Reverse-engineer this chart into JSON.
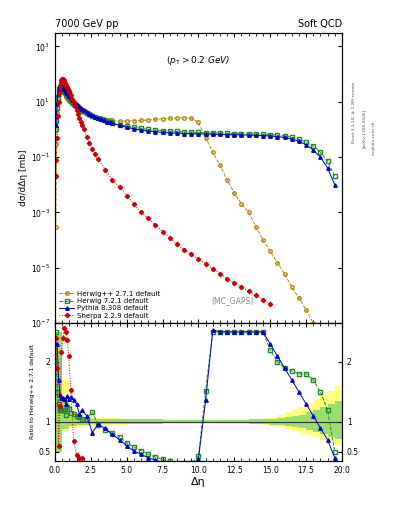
{
  "title_left": "7000 GeV pp",
  "title_right": "Soft QCD",
  "annotation": "(p_{T} > 0.2 GeV)",
  "mc_label": "(MC_GAPS)",
  "xlabel": "Δη",
  "ylabel_main": "dσ/dΔη [mb]",
  "ylabel_ratio": "Ratio to Herwig++ 2.7.1 default",
  "rivet_label": "Rivet 3.1.10; ≥ 3.2M events",
  "arxiv_label": "[arXiv:1306.3436]",
  "mcplots_label": "mcplots.cern.ch",
  "series": {
    "herwigpp": {
      "label": "Herwig++ 2.7.1 default",
      "color": "#b8860b",
      "linestyle": "--",
      "marker": "o",
      "markerfacecolor": "none",
      "x": [
        0.05,
        0.1,
        0.15,
        0.2,
        0.25,
        0.3,
        0.35,
        0.4,
        0.45,
        0.5,
        0.55,
        0.6,
        0.65,
        0.7,
        0.75,
        0.8,
        0.85,
        0.9,
        0.95,
        1.0,
        1.1,
        1.2,
        1.3,
        1.4,
        1.5,
        1.6,
        1.7,
        1.8,
        1.9,
        2.0,
        2.2,
        2.4,
        2.6,
        2.8,
        3.0,
        3.2,
        3.4,
        3.6,
        3.8,
        4.0,
        4.5,
        5.0,
        5.5,
        6.0,
        6.5,
        7.0,
        7.5,
        8.0,
        8.5,
        9.0,
        9.5,
        10.0,
        10.5,
        11.0,
        11.5,
        12.0,
        12.5,
        13.0,
        13.5,
        14.0,
        14.5,
        15.0,
        15.5,
        16.0,
        16.5,
        17.0,
        17.5,
        18.0,
        18.5,
        19.0,
        19.5
      ],
      "y": [
        0.0003,
        0.3,
        4.0,
        10.0,
        17.0,
        22.0,
        26.0,
        28.0,
        28.0,
        27.0,
        25.0,
        23.0,
        21.0,
        19.0,
        17.0,
        15.0,
        14.0,
        13.0,
        12.0,
        11.0,
        9.5,
        8.5,
        7.5,
        6.8,
        6.2,
        5.7,
        5.3,
        4.9,
        4.6,
        4.3,
        3.8,
        3.4,
        3.1,
        2.85,
        2.65,
        2.5,
        2.35,
        2.25,
        2.15,
        2.1,
        2.0,
        2.0,
        2.05,
        2.1,
        2.2,
        2.3,
        2.4,
        2.5,
        2.6,
        2.65,
        2.55,
        1.8,
        0.5,
        0.15,
        0.05,
        0.015,
        0.005,
        0.002,
        0.001,
        0.0003,
        0.0001,
        4e-05,
        1.5e-05,
        6e-06,
        2e-06,
        8e-07,
        3e-07,
        1e-07,
        4e-08,
        2e-08,
        8e-09
      ]
    },
    "herwig7": {
      "label": "Herwig 7.2.1 default",
      "color": "#228B22",
      "linestyle": "--",
      "marker": "s",
      "markerfacecolor": "none",
      "x": [
        0.05,
        0.1,
        0.15,
        0.2,
        0.25,
        0.3,
        0.35,
        0.4,
        0.45,
        0.5,
        0.55,
        0.6,
        0.65,
        0.7,
        0.75,
        0.8,
        0.85,
        0.9,
        0.95,
        1.0,
        1.1,
        1.2,
        1.3,
        1.4,
        1.5,
        1.6,
        1.7,
        1.8,
        1.9,
        2.0,
        2.2,
        2.4,
        2.6,
        2.8,
        3.0,
        3.2,
        3.4,
        3.6,
        3.8,
        4.0,
        4.5,
        5.0,
        5.5,
        6.0,
        6.5,
        7.0,
        7.5,
        8.0,
        8.5,
        9.0,
        9.5,
        10.0,
        10.5,
        11.0,
        11.5,
        12.0,
        12.5,
        13.0,
        13.5,
        14.0,
        14.5,
        15.0,
        15.5,
        16.0,
        16.5,
        17.0,
        17.5,
        18.0,
        18.5,
        19.0,
        19.5
      ],
      "y": [
        1.0,
        2.0,
        6.0,
        14.0,
        22.0,
        28.0,
        32.0,
        34.0,
        34.0,
        32.0,
        30.0,
        27.0,
        25.0,
        23.0,
        21.0,
        19.0,
        17.5,
        16.0,
        14.5,
        13.0,
        11.0,
        9.5,
        8.5,
        7.5,
        6.8,
        6.2,
        5.7,
        5.2,
        4.8,
        4.5,
        4.0,
        3.5,
        3.1,
        2.8,
        2.5,
        2.3,
        2.1,
        1.95,
        1.82,
        1.7,
        1.5,
        1.3,
        1.2,
        1.1,
        1.0,
        0.95,
        0.9,
        0.87,
        0.84,
        0.82,
        0.8,
        0.78,
        0.76,
        0.75,
        0.73,
        0.72,
        0.71,
        0.7,
        0.69,
        0.68,
        0.67,
        0.65,
        0.62,
        0.58,
        0.52,
        0.44,
        0.35,
        0.25,
        0.15,
        0.07,
        0.02
      ]
    },
    "pythia8": {
      "label": "Pythia 8.308 default",
      "color": "#0000cd",
      "linestyle": "-",
      "marker": "^",
      "markerfacecolor": "#0000cd",
      "x": [
        0.05,
        0.1,
        0.15,
        0.2,
        0.25,
        0.3,
        0.35,
        0.4,
        0.45,
        0.5,
        0.55,
        0.6,
        0.65,
        0.7,
        0.75,
        0.8,
        0.85,
        0.9,
        0.95,
        1.0,
        1.1,
        1.2,
        1.3,
        1.4,
        1.5,
        1.6,
        1.7,
        1.8,
        1.9,
        2.0,
        2.2,
        2.4,
        2.6,
        2.8,
        3.0,
        3.2,
        3.4,
        3.6,
        3.8,
        4.0,
        4.5,
        5.0,
        5.5,
        6.0,
        6.5,
        7.0,
        7.5,
        8.0,
        8.5,
        9.0,
        9.5,
        10.0,
        10.5,
        11.0,
        11.5,
        12.0,
        12.5,
        13.0,
        13.5,
        14.0,
        14.5,
        15.0,
        15.5,
        16.0,
        16.5,
        17.0,
        17.5,
        18.0,
        18.5,
        19.0,
        19.5
      ],
      "y": [
        1.5,
        3.0,
        9.0,
        19.0,
        29.0,
        36.0,
        40.0,
        41.0,
        40.0,
        38.0,
        35.0,
        32.0,
        29.0,
        26.0,
        24.0,
        22.0,
        20.0,
        18.5,
        17.0,
        15.5,
        13.5,
        11.5,
        10.0,
        9.0,
        8.0,
        7.2,
        6.5,
        6.0,
        5.5,
        5.0,
        4.2,
        3.7,
        3.2,
        2.85,
        2.55,
        2.3,
        2.1,
        1.9,
        1.8,
        1.65,
        1.4,
        1.2,
        1.05,
        0.95,
        0.87,
        0.82,
        0.78,
        0.75,
        0.73,
        0.71,
        0.7,
        0.69,
        0.68,
        0.67,
        0.66,
        0.65,
        0.64,
        0.63,
        0.62,
        0.61,
        0.6,
        0.58,
        0.55,
        0.51,
        0.45,
        0.37,
        0.28,
        0.18,
        0.1,
        0.04,
        0.01
      ]
    },
    "sherpa": {
      "label": "Sherpa 2.2.9 default",
      "color": "#cc0000",
      "linestyle": ":",
      "marker": "D",
      "markerfacecolor": "#cc0000",
      "x": [
        0.05,
        0.1,
        0.15,
        0.2,
        0.25,
        0.3,
        0.35,
        0.4,
        0.45,
        0.5,
        0.55,
        0.6,
        0.65,
        0.7,
        0.75,
        0.8,
        0.85,
        0.9,
        0.95,
        1.0,
        1.1,
        1.2,
        1.3,
        1.4,
        1.5,
        1.6,
        1.7,
        1.8,
        1.9,
        2.0,
        2.2,
        2.4,
        2.6,
        2.8,
        3.0,
        3.5,
        4.0,
        4.5,
        5.0,
        5.5,
        6.0,
        6.5,
        7.0,
        7.5,
        8.0,
        8.5,
        9.0,
        9.5,
        10.0,
        10.5,
        11.0,
        11.5,
        12.0,
        12.5,
        13.0,
        13.5,
        14.0,
        14.5,
        15.0
      ],
      "y": [
        0.02,
        0.08,
        0.5,
        3.0,
        10.0,
        20.0,
        35.0,
        50.0,
        60.0,
        65.0,
        65.0,
        60.0,
        54.0,
        48.0,
        42.0,
        37.0,
        33.0,
        29.0,
        25.0,
        22.0,
        17.0,
        13.0,
        9.5,
        7.0,
        5.0,
        3.6,
        2.6,
        1.9,
        1.4,
        1.0,
        0.55,
        0.32,
        0.2,
        0.13,
        0.085,
        0.035,
        0.015,
        0.008,
        0.004,
        0.002,
        0.001,
        0.0006,
        0.00035,
        0.0002,
        0.00012,
        7e-05,
        4.5e-05,
        3e-05,
        2e-05,
        1.4e-05,
        9e-06,
        6e-06,
        4e-06,
        2.8e-06,
        2e-06,
        1.4e-06,
        1e-06,
        7e-07,
        5e-07
      ]
    }
  },
  "ratio_herwig7": {
    "x": [
      0.05,
      0.15,
      0.25,
      0.35,
      0.45,
      0.55,
      0.65,
      0.75,
      0.85,
      0.95,
      1.1,
      1.3,
      1.5,
      1.7,
      1.9,
      2.2,
      2.6,
      3.0,
      3.5,
      4.0,
      4.5,
      5.0,
      5.5,
      6.0,
      6.5,
      7.0,
      7.5,
      8.0,
      8.5,
      9.0,
      9.5,
      10.0,
      10.5,
      11.0,
      11.5,
      12.0,
      12.5,
      13.0,
      13.5,
      14.0,
      14.5,
      15.0,
      15.5,
      16.0,
      16.5,
      17.0,
      17.5,
      18.0,
      18.5,
      19.0,
      19.5
    ],
    "y": [
      2.5,
      1.5,
      1.3,
      1.2,
      1.2,
      1.2,
      1.19,
      1.12,
      1.25,
      1.21,
      1.15,
      1.13,
      1.1,
      1.08,
      1.04,
      1.05,
      1.17,
      0.95,
      0.87,
      0.81,
      0.75,
      0.65,
      0.58,
      0.52,
      0.46,
      0.41,
      0.375,
      0.34,
      0.32,
      0.31,
      0.31,
      0.43,
      1.52,
      2.5,
      2.5,
      2.5,
      2.5,
      2.5,
      2.5,
      2.5,
      2.5,
      2.2,
      2.0,
      1.9,
      1.85,
      1.8,
      1.8,
      1.7,
      1.5,
      1.2,
      0.5
    ]
  },
  "ratio_pythia8": {
    "x": [
      0.05,
      0.15,
      0.25,
      0.35,
      0.45,
      0.55,
      0.65,
      0.75,
      0.85,
      0.95,
      1.1,
      1.3,
      1.5,
      1.7,
      1.9,
      2.2,
      2.6,
      3.0,
      3.5,
      4.0,
      4.5,
      5.0,
      5.5,
      6.0,
      6.5,
      7.0,
      7.5,
      8.0,
      8.5,
      9.0,
      9.5,
      10.0,
      10.5,
      11.0,
      11.5,
      12.0,
      12.5,
      13.0,
      13.5,
      14.0,
      14.5,
      15.0,
      15.5,
      16.0,
      16.5,
      17.0,
      17.5,
      18.0,
      18.5,
      19.0,
      19.5
    ],
    "y": [
      2.3,
      2.3,
      1.7,
      1.45,
      1.4,
      1.4,
      1.38,
      1.3,
      1.43,
      1.38,
      1.42,
      1.36,
      1.29,
      1.13,
      1.19,
      1.1,
      0.82,
      0.96,
      0.89,
      0.79,
      0.7,
      0.6,
      0.51,
      0.46,
      0.4,
      0.36,
      0.325,
      0.3,
      0.28,
      0.27,
      0.274,
      0.383,
      1.36,
      2.53,
      2.5,
      2.5,
      2.5,
      2.5,
      2.5,
      2.5,
      2.5,
      2.3,
      2.1,
      1.9,
      1.7,
      1.5,
      1.3,
      1.1,
      0.9,
      0.7,
      0.4
    ]
  },
  "ratio_sherpa": {
    "x": [
      0.05,
      0.15,
      0.25,
      0.35,
      0.45,
      0.55,
      0.65,
      0.75,
      0.85,
      0.95,
      1.1,
      1.3,
      1.5,
      1.7,
      1.9
    ],
    "y": [
      2.4,
      1.9,
      0.59,
      1.26,
      2.16,
      2.4,
      2.57,
      2.5,
      2.36,
      2.1,
      1.53,
      0.68,
      0.45,
      0.4,
      0.4
    ]
  },
  "band_yellow_edges": [
    0.0,
    0.5,
    1.0,
    1.5,
    2.0,
    2.5,
    3.0,
    3.5,
    4.0,
    4.5,
    5.0,
    5.5,
    6.0,
    6.5,
    7.0,
    7.5,
    8.0,
    8.5,
    9.0,
    9.5,
    10.0,
    10.5,
    11.0,
    11.5,
    12.0,
    12.5,
    13.0,
    13.5,
    14.0,
    14.5,
    15.0,
    15.5,
    16.0,
    16.5,
    17.0,
    17.5,
    18.0,
    18.5,
    19.0,
    19.5,
    20.0
  ],
  "band_yellow_low": [
    0.5,
    0.85,
    0.9,
    0.92,
    0.93,
    0.94,
    0.95,
    0.95,
    0.95,
    0.95,
    0.96,
    0.96,
    0.96,
    0.96,
    0.96,
    0.97,
    0.97,
    0.97,
    0.97,
    0.97,
    0.97,
    0.97,
    0.97,
    0.97,
    0.97,
    0.97,
    0.97,
    0.96,
    0.96,
    0.95,
    0.93,
    0.91,
    0.88,
    0.85,
    0.82,
    0.78,
    0.74,
    0.7,
    0.66,
    0.62
  ],
  "band_yellow_high": [
    2.5,
    1.7,
    1.15,
    1.09,
    1.08,
    1.07,
    1.06,
    1.06,
    1.06,
    1.05,
    1.05,
    1.05,
    1.05,
    1.05,
    1.05,
    1.04,
    1.04,
    1.04,
    1.04,
    1.04,
    1.04,
    1.04,
    1.04,
    1.04,
    1.04,
    1.04,
    1.04,
    1.05,
    1.05,
    1.06,
    1.08,
    1.12,
    1.16,
    1.2,
    1.25,
    1.3,
    1.38,
    1.45,
    1.52,
    1.6
  ],
  "band_green_low": [
    0.5,
    0.88,
    0.93,
    0.95,
    0.955,
    0.96,
    0.965,
    0.965,
    0.965,
    0.965,
    0.97,
    0.97,
    0.97,
    0.97,
    0.97,
    0.975,
    0.975,
    0.975,
    0.975,
    0.975,
    0.975,
    0.975,
    0.975,
    0.975,
    0.975,
    0.975,
    0.975,
    0.97,
    0.97,
    0.965,
    0.955,
    0.945,
    0.93,
    0.91,
    0.89,
    0.86,
    0.83,
    0.79,
    0.75,
    0.71
  ],
  "band_green_high": [
    2.5,
    1.35,
    1.08,
    1.06,
    1.055,
    1.05,
    1.045,
    1.045,
    1.045,
    1.04,
    1.04,
    1.04,
    1.04,
    1.04,
    1.04,
    1.035,
    1.035,
    1.035,
    1.035,
    1.035,
    1.035,
    1.035,
    1.035,
    1.035,
    1.035,
    1.035,
    1.035,
    1.04,
    1.04,
    1.045,
    1.055,
    1.065,
    1.08,
    1.1,
    1.12,
    1.16,
    1.2,
    1.25,
    1.3,
    1.35
  ],
  "ylim_main": [
    1e-07,
    3000.0
  ],
  "ylim_ratio": [
    0.35,
    2.65
  ],
  "xlim": [
    0,
    20
  ],
  "yticks_ratio": [
    0.5,
    1.0,
    2.0
  ]
}
